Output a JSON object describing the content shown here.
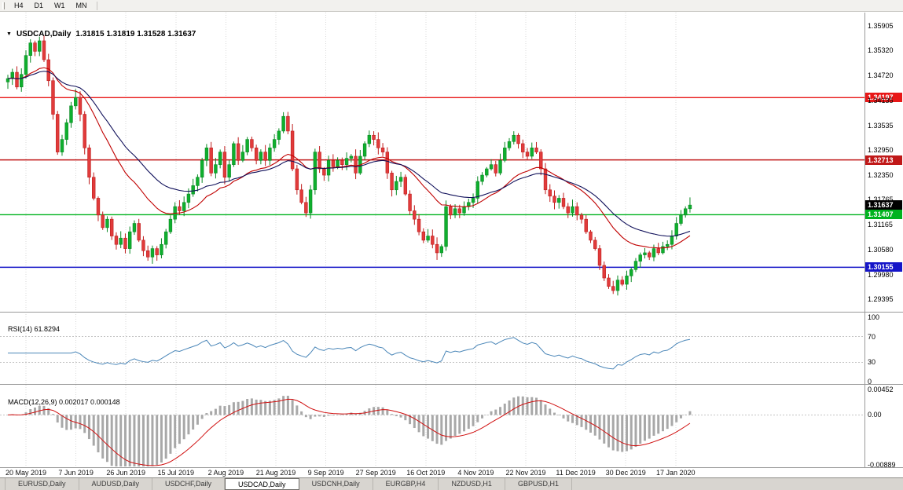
{
  "toolbar": {
    "timeframe_buttons": [
      "H4",
      "D1",
      "W1",
      "MN"
    ]
  },
  "chart_data": {
    "type": "candlestick",
    "symbol": "USDCAD",
    "timeframe": "Daily",
    "header": {
      "symbol": "USDCAD,Daily",
      "ohlc": "1.31815 1.31819 1.31528 1.31637"
    },
    "price_axis": {
      "ticks": [
        "1.35905",
        "1.35320",
        "1.34720",
        "1.34135",
        "1.33535",
        "1.32950",
        "1.32350",
        "1.31765",
        "1.31165",
        "1.30580",
        "1.29980",
        "1.29395"
      ],
      "top": 1.35905,
      "bottom": 1.29395
    },
    "date_labels": [
      "20 May 2019",
      "7 Jun 2019",
      "26 Jun 2019",
      "15 Jul 2019",
      "2 Aug 2019",
      "21 Aug 2019",
      "9 Sep 2019",
      "27 Sep 2019",
      "16 Oct 2019",
      "4 Nov 2019",
      "22 Nov 2019",
      "11 Dec 2019",
      "30 Dec 2019",
      "17 Jan 2020"
    ],
    "closes": [
      1.3465,
      1.348,
      1.3445,
      1.3475,
      1.352,
      1.355,
      1.353,
      1.3555,
      1.351,
      1.346,
      1.338,
      1.329,
      1.332,
      1.336,
      1.34,
      1.342,
      1.338,
      1.33,
      1.323,
      1.318,
      1.314,
      1.311,
      1.313,
      1.309,
      1.307,
      1.3085,
      1.306,
      1.31,
      1.312,
      1.308,
      1.3055,
      1.304,
      1.306,
      1.3045,
      1.307,
      1.31,
      1.313,
      1.316,
      1.315,
      1.317,
      1.319,
      1.321,
      1.323,
      1.327,
      1.33,
      1.324,
      1.326,
      1.329,
      1.323,
      1.326,
      1.331,
      1.327,
      1.329,
      1.332,
      1.33,
      1.327,
      1.329,
      1.327,
      1.33,
      1.332,
      1.334,
      1.3375,
      1.334,
      1.325,
      1.32,
      1.317,
      1.3145,
      1.32,
      1.329,
      1.325,
      1.3235,
      1.327,
      1.3255,
      1.327,
      1.326,
      1.3275,
      1.328,
      1.324,
      1.328,
      1.331,
      1.333,
      1.332,
      1.33,
      1.329,
      1.324,
      1.32,
      1.322,
      1.323,
      1.319,
      1.315,
      1.313,
      1.31,
      1.308,
      1.309,
      1.307,
      1.305,
      1.3065,
      1.316,
      1.314,
      1.3155,
      1.3145,
      1.316,
      1.317,
      1.318,
      1.322,
      1.3235,
      1.325,
      1.326,
      1.324,
      1.327,
      1.33,
      1.3315,
      1.333,
      1.331,
      1.329,
      1.328,
      1.33,
      1.329,
      1.325,
      1.32,
      1.3185,
      1.317,
      1.318,
      1.316,
      1.3145,
      1.316,
      1.314,
      1.313,
      1.31,
      1.308,
      1.306,
      1.302,
      1.299,
      1.297,
      1.296,
      1.2985,
      1.2975,
      1.2995,
      1.301,
      1.303,
      1.3045,
      1.305,
      1.304,
      1.306,
      1.305,
      1.3065,
      1.307,
      1.309,
      1.312,
      1.314,
      1.3155,
      1.31637
    ],
    "wick_overrides": {
      "7": {
        "high": 1.3565
      },
      "15": {
        "high": 1.344
      },
      "61": {
        "high": 1.3385
      },
      "134": {
        "low": 1.2952
      },
      "151": {
        "high": 1.3182
      }
    },
    "hlines": [
      {
        "price": 1.34197,
        "label": "1.34197",
        "color": "#e81717"
      },
      {
        "price": 1.32713,
        "label": "1.32713",
        "color": "#c01818"
      },
      {
        "price": 1.31407,
        "label": "1.31407",
        "color": "#00b31f"
      },
      {
        "price": 1.30155,
        "label": "1.30155",
        "color": "#1414c8"
      }
    ],
    "current_price": {
      "price": 1.31637,
      "label": "1.31637",
      "color": "#000000"
    },
    "moving_averages": [
      {
        "period": 21,
        "color": "#c00000"
      },
      {
        "period": 34,
        "color": "#10105a"
      }
    ],
    "rsi": {
      "label": "RSI(14) 61.8294",
      "period": 14,
      "value": 61.8294,
      "axis_labels": [
        "100",
        "70",
        "30",
        "0"
      ],
      "levels": [
        70,
        30
      ],
      "color": "#4a86b8"
    },
    "macd": {
      "label": "MACD(12,26,9) 0.002017 0.000148",
      "fast": 12,
      "slow": 26,
      "signal": 9,
      "values": [
        0.002017,
        0.000148
      ],
      "axis_labels": [
        "0.00452",
        "0.00",
        "-0.00889"
      ],
      "range": [
        0.00452,
        -0.00889
      ],
      "hist_color": "#a8a8a8",
      "signal_color": "#d01010"
    },
    "colors": {
      "bull": "#0faf2e",
      "bull_edge": "#0a8a24",
      "bear": "#e13b3b",
      "bear_edge": "#bf1d1d",
      "grid": "#d9d9d9",
      "separator": "#9a9a9a",
      "level_dash": "#c4c4c4"
    }
  },
  "tabs": {
    "items": [
      {
        "label": "EURUSD,Daily",
        "active": false
      },
      {
        "label": "AUDUSD,Daily",
        "active": false
      },
      {
        "label": "USDCHF,Daily",
        "active": false
      },
      {
        "label": "USDCAD,Daily",
        "active": true
      },
      {
        "label": "USDCNH,Daily",
        "active": false
      },
      {
        "label": "EURGBP,H4",
        "active": false
      },
      {
        "label": "NZDUSD,H1",
        "active": false
      },
      {
        "label": "GBPUSD,H1",
        "active": false
      }
    ]
  }
}
